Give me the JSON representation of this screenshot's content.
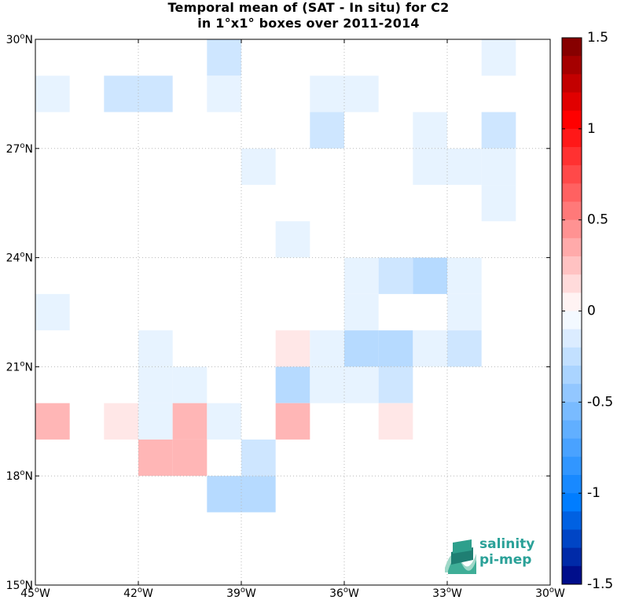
{
  "chart_data": {
    "type": "heatmap",
    "title": [
      "Temporal mean of (SAT - In situ) for C2",
      "in 1°x1° boxes over 2011-2014"
    ],
    "xlim": [
      -45,
      -30
    ],
    "ylim": [
      15,
      30
    ],
    "x_ticks": [
      {
        "value": -45,
        "label": "45°W"
      },
      {
        "value": -42,
        "label": "42°W"
      },
      {
        "value": -39,
        "label": "39°W"
      },
      {
        "value": -36,
        "label": "36°W"
      },
      {
        "value": -33,
        "label": "33°W"
      },
      {
        "value": -30,
        "label": "30°W"
      }
    ],
    "y_ticks": [
      {
        "value": 30,
        "label": "30°N"
      },
      {
        "value": 27,
        "label": "27°N"
      },
      {
        "value": 24,
        "label": "24°N"
      },
      {
        "value": 21,
        "label": "21°N"
      },
      {
        "value": 18,
        "label": "18°N"
      },
      {
        "value": 15,
        "label": "15°N"
      }
    ],
    "grid": true,
    "colorbar": {
      "range": [
        -1.5,
        1.5
      ],
      "ticks": [
        "1.5",
        "1",
        "0.5",
        "0",
        "-0.5",
        "-1",
        "-1.5"
      ],
      "tick_values": [
        1.5,
        1,
        0.5,
        0,
        -0.5,
        -1,
        -1.5
      ],
      "colormap": "blue-white-red"
    },
    "cells": [
      {
        "lon": -39.5,
        "lat": 29.5,
        "value": -0.2
      },
      {
        "lon": -31.5,
        "lat": 29.5,
        "value": -0.1
      },
      {
        "lon": -44.5,
        "lat": 28.5,
        "value": -0.1
      },
      {
        "lon": -42.5,
        "lat": 28.5,
        "value": -0.2
      },
      {
        "lon": -41.5,
        "lat": 28.5,
        "value": -0.2
      },
      {
        "lon": -39.5,
        "lat": 28.5,
        "value": -0.1
      },
      {
        "lon": -36.5,
        "lat": 28.5,
        "value": -0.1
      },
      {
        "lon": -35.5,
        "lat": 28.5,
        "value": -0.1
      },
      {
        "lon": -36.5,
        "lat": 27.5,
        "value": -0.25
      },
      {
        "lon": -33.5,
        "lat": 27.5,
        "value": -0.1
      },
      {
        "lon": -31.5,
        "lat": 27.5,
        "value": -0.2
      },
      {
        "lon": -38.5,
        "lat": 26.5,
        "value": -0.1
      },
      {
        "lon": -33.5,
        "lat": 26.5,
        "value": -0.1
      },
      {
        "lon": -32.5,
        "lat": 26.5,
        "value": -0.1
      },
      {
        "lon": -31.5,
        "lat": 26.5,
        "value": -0.1
      },
      {
        "lon": -31.5,
        "lat": 25.5,
        "value": -0.1
      },
      {
        "lon": -37.5,
        "lat": 24.5,
        "value": -0.1
      },
      {
        "lon": -35.5,
        "lat": 23.5,
        "value": -0.1
      },
      {
        "lon": -34.5,
        "lat": 23.5,
        "value": -0.2
      },
      {
        "lon": -33.5,
        "lat": 23.5,
        "value": -0.3
      },
      {
        "lon": -32.5,
        "lat": 23.5,
        "value": -0.1
      },
      {
        "lon": -44.5,
        "lat": 22.5,
        "value": -0.1
      },
      {
        "lon": -35.5,
        "lat": 22.5,
        "value": -0.1
      },
      {
        "lon": -32.5,
        "lat": 22.5,
        "value": -0.1
      },
      {
        "lon": -41.5,
        "lat": 21.5,
        "value": -0.1
      },
      {
        "lon": -37.5,
        "lat": 21.5,
        "value": 0.15
      },
      {
        "lon": -36.5,
        "lat": 21.5,
        "value": -0.1
      },
      {
        "lon": -35.5,
        "lat": 21.5,
        "value": -0.3
      },
      {
        "lon": -34.5,
        "lat": 21.5,
        "value": -0.3
      },
      {
        "lon": -33.5,
        "lat": 21.5,
        "value": -0.1
      },
      {
        "lon": -32.5,
        "lat": 21.5,
        "value": -0.2
      },
      {
        "lon": -41.5,
        "lat": 20.5,
        "value": -0.1
      },
      {
        "lon": -40.5,
        "lat": 20.5,
        "value": -0.1
      },
      {
        "lon": -37.5,
        "lat": 20.5,
        "value": -0.35
      },
      {
        "lon": -36.5,
        "lat": 20.5,
        "value": -0.1
      },
      {
        "lon": -35.5,
        "lat": 20.5,
        "value": -0.1
      },
      {
        "lon": -34.5,
        "lat": 20.5,
        "value": -0.2
      },
      {
        "lon": -44.5,
        "lat": 19.5,
        "value": 0.25
      },
      {
        "lon": -42.5,
        "lat": 19.5,
        "value": 0.15
      },
      {
        "lon": -41.5,
        "lat": 19.5,
        "value": -0.1
      },
      {
        "lon": -40.5,
        "lat": 19.5,
        "value": 0.25
      },
      {
        "lon": -39.5,
        "lat": 19.5,
        "value": -0.1
      },
      {
        "lon": -37.5,
        "lat": 19.5,
        "value": 0.25
      },
      {
        "lon": -34.5,
        "lat": 19.5,
        "value": 0.15
      },
      {
        "lon": -41.5,
        "lat": 18.5,
        "value": 0.25
      },
      {
        "lon": -40.5,
        "lat": 18.5,
        "value": 0.25
      },
      {
        "lon": -38.5,
        "lat": 18.5,
        "value": -0.2
      },
      {
        "lon": -39.5,
        "lat": 17.5,
        "value": -0.35
      },
      {
        "lon": -38.5,
        "lat": 17.5,
        "value": -0.35
      }
    ]
  },
  "logo": {
    "line1": "salinity",
    "line2": "pi-mep"
  }
}
